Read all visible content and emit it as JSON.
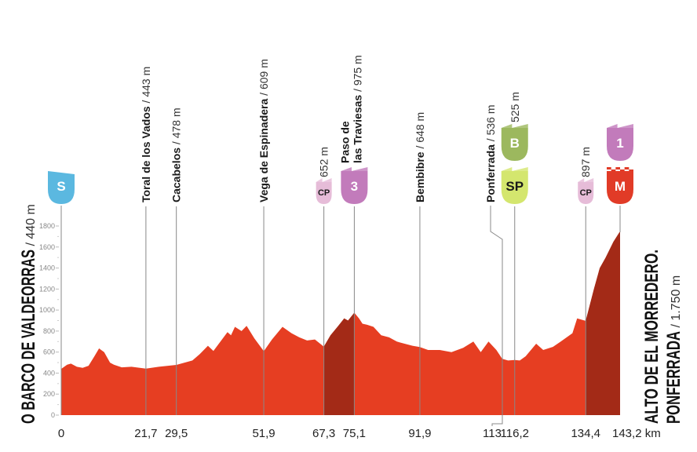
{
  "chart_data": {
    "type": "area",
    "title": "",
    "xlabel": "",
    "ylabel": "",
    "x_unit": "km",
    "xlim": [
      0,
      143.2
    ],
    "ylim": [
      0,
      1800
    ],
    "y_ticks": [
      "0",
      "200",
      "400",
      "600",
      "800",
      "1000",
      "1200",
      "1400",
      "1600",
      "1800"
    ],
    "grid": false,
    "colors": {
      "profile": "#e63e22",
      "climb": "#a32a17",
      "line": "#9a9a9a"
    },
    "profile": [
      [
        0,
        440
      ],
      [
        1.5,
        480
      ],
      [
        2.5,
        490
      ],
      [
        4,
        460
      ],
      [
        5.5,
        450
      ],
      [
        7,
        470
      ],
      [
        8.5,
        560
      ],
      [
        9.7,
        635
      ],
      [
        11,
        600
      ],
      [
        12.5,
        500
      ],
      [
        13.5,
        480
      ],
      [
        15.5,
        455
      ],
      [
        18,
        460
      ],
      [
        21.7,
        443
      ],
      [
        25,
        460
      ],
      [
        29.5,
        478
      ],
      [
        33.6,
        520
      ],
      [
        35.5,
        580
      ],
      [
        37.6,
        660
      ],
      [
        39,
        610
      ],
      [
        42.6,
        790
      ],
      [
        43.5,
        760
      ],
      [
        44.5,
        840
      ],
      [
        46.2,
        800
      ],
      [
        47.5,
        850
      ],
      [
        49.5,
        730
      ],
      [
        51.9,
        609
      ],
      [
        54,
        720
      ],
      [
        56.7,
        840
      ],
      [
        59,
        780
      ],
      [
        61,
        740
      ],
      [
        63,
        710
      ],
      [
        65,
        720
      ],
      [
        67.3,
        652
      ],
      [
        69,
        760
      ],
      [
        71,
        850
      ],
      [
        72.5,
        920
      ],
      [
        73.5,
        900
      ],
      [
        75.1,
        975
      ],
      [
        76.3,
        920
      ],
      [
        77.2,
        870
      ],
      [
        78.4,
        860
      ],
      [
        80,
        840
      ],
      [
        82,
        760
      ],
      [
        84,
        740
      ],
      [
        86,
        700
      ],
      [
        88,
        680
      ],
      [
        90,
        660
      ],
      [
        91.9,
        648
      ],
      [
        94,
        620
      ],
      [
        97,
        620
      ],
      [
        100,
        600
      ],
      [
        103,
        640
      ],
      [
        105.6,
        700
      ],
      [
        107.5,
        600
      ],
      [
        109.5,
        700
      ],
      [
        111.5,
        620
      ],
      [
        113,
        536
      ],
      [
        114.5,
        520
      ],
      [
        116.2,
        525
      ],
      [
        117.5,
        520
      ],
      [
        119,
        560
      ],
      [
        121.7,
        680
      ],
      [
        123.5,
        620
      ],
      [
        126,
        650
      ],
      [
        128,
        700
      ],
      [
        131,
        780
      ],
      [
        132.2,
        920
      ],
      [
        134.4,
        897
      ],
      [
        136.5,
        1200
      ],
      [
        138,
        1400
      ],
      [
        139.5,
        1500
      ],
      [
        141.5,
        1650
      ],
      [
        143.2,
        1750
      ]
    ],
    "climbs": [
      [
        67.3,
        75.1
      ],
      [
        134.4,
        143.2
      ]
    ],
    "km_labels": [
      {
        "km": 0,
        "label": "0"
      },
      {
        "km": 21.7,
        "label": "21,7"
      },
      {
        "km": 29.5,
        "label": "29,5"
      },
      {
        "km": 51.9,
        "label": "51,9"
      },
      {
        "km": 67.3,
        "label": "67,3"
      },
      {
        "km": 75.1,
        "label": "75,1"
      },
      {
        "km": 91.9,
        "label": "91,9"
      },
      {
        "km": 113,
        "label": "113"
      },
      {
        "km": 116.2,
        "label": "116,2"
      },
      {
        "km": 134.4,
        "label": "134,4"
      },
      {
        "km": 143.2,
        "label": "143,2 km"
      }
    ],
    "waypoints": [
      {
        "km": 21.7,
        "name": "Toral de los Vados",
        "elev": " / 443 m"
      },
      {
        "km": 29.5,
        "name": "Cacabelos",
        "elev": " / 478 m"
      },
      {
        "km": 51.9,
        "name": "Vega de Espinadera",
        "elev": " / 609 m"
      },
      {
        "km": 67.3,
        "name": "",
        "elev": "652 m"
      },
      {
        "km": 75.1,
        "name": "Paso de",
        "name2": "las Traviesas",
        "elev": " / 975 m"
      },
      {
        "km": 91.9,
        "name": "Bembibre",
        "elev": " / 648 m"
      },
      {
        "km": 113,
        "name": "Ponferrada",
        "elev": " / 536 m"
      },
      {
        "km": 116.2,
        "name": "",
        "elev": "525 m"
      },
      {
        "km": 134.4,
        "name": "",
        "elev": "897 m"
      }
    ],
    "badges": [
      {
        "km": 0,
        "label": "S",
        "type": "start",
        "color": "#5bb8e0"
      },
      {
        "km": 67.3,
        "label": "CP",
        "type": "checkpoint",
        "color": "#e6bcd8"
      },
      {
        "km": 75.1,
        "label": "3",
        "type": "climb-cat-3",
        "color": "#c27bbb"
      },
      {
        "km": 116.2,
        "label": "B",
        "type": "bonus",
        "color": "#9cb85e"
      },
      {
        "km": 116.2,
        "label": "SP",
        "type": "sprint",
        "color": "#d4e66e"
      },
      {
        "km": 134.4,
        "label": "CP",
        "type": "checkpoint",
        "color": "#e6bcd8"
      },
      {
        "km": 143.2,
        "label": "1",
        "type": "climb-cat-1",
        "color": "#c27bbb"
      },
      {
        "km": 143.2,
        "label": "M",
        "type": "finish",
        "color": "#e13b27"
      }
    ],
    "start": {
      "name": "O BARCO DE VALDEORRAS",
      "elev": " / 440 m"
    },
    "finish": {
      "name": "ALTO DE EL MORREDERO.",
      "name2": "PONFERRADA",
      "elev": " / 1.750 m"
    }
  }
}
